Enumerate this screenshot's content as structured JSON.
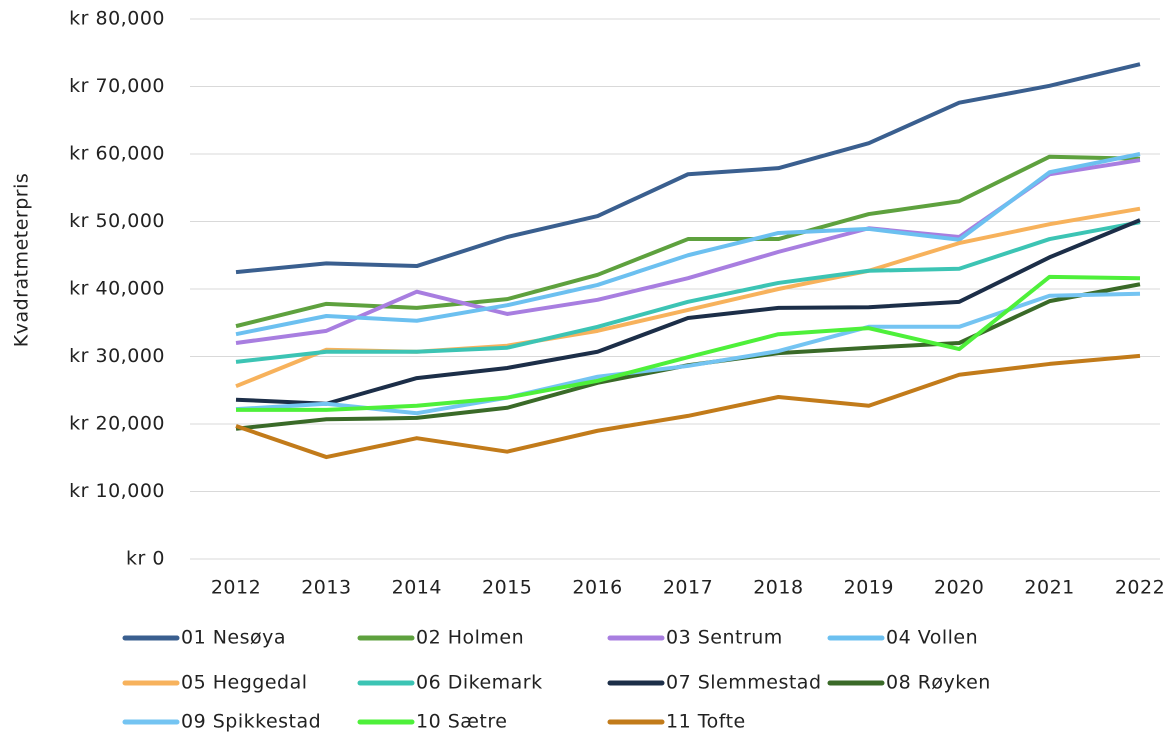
{
  "chart_data": {
    "type": "line",
    "y_label": "Kvadratmeterpris",
    "categories": [
      "2012",
      "2013",
      "2014",
      "2015",
      "2016",
      "2017",
      "2018",
      "2019",
      "2020",
      "2021",
      "2022"
    ],
    "ylim": [
      0,
      80000
    ],
    "yticks": [
      {
        "value": 0,
        "label": "kr 0"
      },
      {
        "value": 10000,
        "label": "kr 10,000"
      },
      {
        "value": 20000,
        "label": "kr 20,000"
      },
      {
        "value": 30000,
        "label": "kr 30,000"
      },
      {
        "value": 40000,
        "label": "kr 40,000"
      },
      {
        "value": 50000,
        "label": "kr 50,000"
      },
      {
        "value": 60000,
        "label": "kr 60,000"
      },
      {
        "value": 70000,
        "label": "kr 70,000"
      },
      {
        "value": 80000,
        "label": "kr 80,000"
      }
    ],
    "grid": true,
    "legend": "bottom",
    "series": [
      {
        "name": "01 Nesøya",
        "color": "#3a5f8f",
        "values": [
          42500,
          43800,
          43400,
          47700,
          50800,
          57000,
          57900,
          61600,
          67600,
          70100,
          73300
        ]
      },
      {
        "name": "02 Holmen",
        "color": "#5ea13e",
        "values": [
          34500,
          37800,
          37200,
          38500,
          42100,
          47400,
          47400,
          51100,
          53000,
          59600,
          59300
        ]
      },
      {
        "name": "03 Sentrum",
        "color": "#a87ee0",
        "values": [
          32000,
          33800,
          39600,
          36300,
          38400,
          41600,
          45500,
          49000,
          47700,
          57000,
          59100
        ]
      },
      {
        "name": "04 Vollen",
        "color": "#6cc0f0",
        "values": [
          33300,
          36000,
          35300,
          37600,
          40600,
          45000,
          48300,
          48900,
          47300,
          57300,
          60000
        ]
      },
      {
        "name": "05 Heggedal",
        "color": "#f7b25c",
        "values": [
          25600,
          31000,
          30700,
          31600,
          33800,
          36900,
          40000,
          42700,
          46800,
          49600,
          51900
        ]
      },
      {
        "name": "06 Dikemark",
        "color": "#3cc4b4",
        "values": [
          29200,
          30700,
          30700,
          31300,
          34400,
          38100,
          40900,
          42700,
          43000,
          47400,
          49900
        ]
      },
      {
        "name": "07 Slemmestad",
        "color": "#1c2e48",
        "values": [
          23600,
          23000,
          26800,
          28300,
          30700,
          35700,
          37200,
          37300,
          38100,
          44700,
          50200
        ]
      },
      {
        "name": "08 Røyken",
        "color": "#3a6a28",
        "values": [
          19300,
          20700,
          20900,
          22400,
          26100,
          28700,
          30500,
          31300,
          32000,
          38200,
          40700
        ]
      },
      {
        "name": "09 Spikkestad",
        "color": "#74c4f2",
        "values": [
          22200,
          23000,
          21600,
          23900,
          27000,
          28600,
          30800,
          34400,
          34400,
          39000,
          39300
        ]
      },
      {
        "name": "10 Sætre",
        "color": "#4ef03a",
        "values": [
          22100,
          22100,
          22700,
          23900,
          26400,
          29900,
          33300,
          34200,
          31100,
          41800,
          41600
        ]
      },
      {
        "name": "11 Tofte",
        "color": "#c27b1a",
        "values": [
          19700,
          15100,
          17900,
          15900,
          19000,
          21200,
          24000,
          22700,
          27300,
          28900,
          30100
        ]
      }
    ]
  }
}
